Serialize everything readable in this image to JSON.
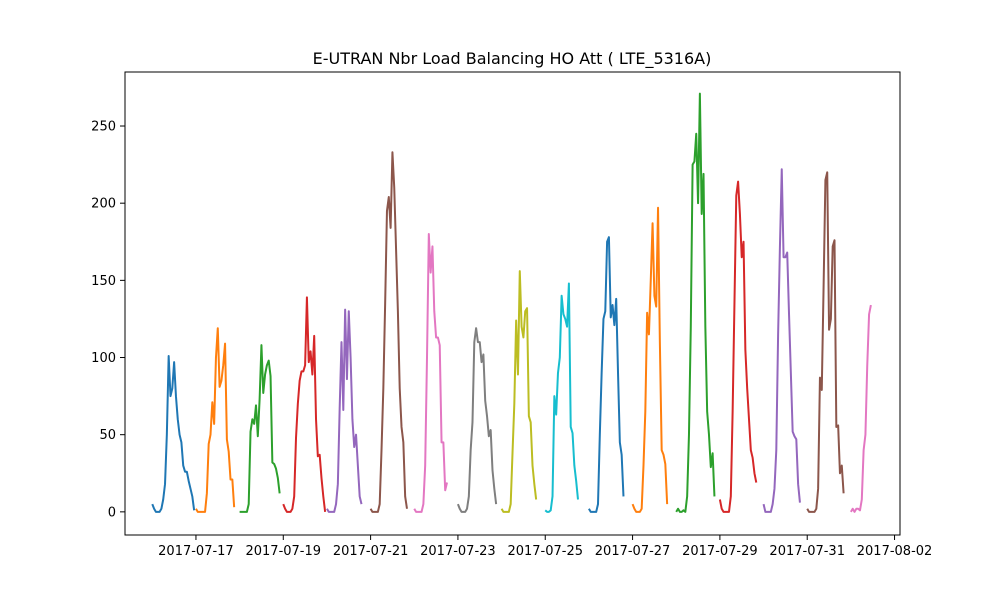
{
  "chart_data": {
    "type": "line",
    "title": "E-UTRAN Nbr Load Balancing HO Att ( LTE_5316A)",
    "xlabel": "",
    "ylabel": "",
    "ylim": [
      -15,
      285
    ],
    "xlim": [
      "2017-07-15T09:00",
      "2017-08-02T03:00"
    ],
    "grid": false,
    "legend": "none",
    "y_ticks": [
      0,
      50,
      100,
      150,
      200,
      250
    ],
    "x_ticks": [
      "2017-07-17",
      "2017-07-19",
      "2017-07-21",
      "2017-07-23",
      "2017-07-25",
      "2017-07-27",
      "2017-07-29",
      "2017-07-31",
      "2017-08-02"
    ],
    "colors": [
      "#1f77b4",
      "#ff7f0e",
      "#2ca02c",
      "#d62728",
      "#9467bd",
      "#8c564b",
      "#e377c2",
      "#7f7f7f",
      "#bcbd22",
      "#17becf"
    ],
    "series": [
      {
        "start": "2017-07-16T00:00",
        "y": [
          5,
          2,
          0,
          0,
          0,
          2,
          8,
          18,
          50,
          101,
          75,
          80,
          97,
          75,
          60,
          50,
          45,
          30,
          26,
          26,
          20,
          15,
          10,
          1
        ]
      },
      {
        "start": "2017-07-17T00:00",
        "y": [
          2,
          0,
          0,
          0,
          0,
          0,
          12,
          44,
          50,
          71,
          57,
          100,
          119,
          81,
          85,
          95,
          109,
          47,
          39,
          21,
          21,
          3
        ]
      },
      {
        "start": "2017-07-18T00:00",
        "y": [
          0,
          0,
          0,
          0,
          0,
          5,
          52,
          60,
          57,
          69,
          49,
          73,
          108,
          77,
          89,
          95,
          98,
          88,
          32,
          31,
          28,
          22,
          12
        ]
      },
      {
        "start": "2017-07-19T00:00",
        "y": [
          5,
          2,
          0,
          0,
          0,
          2,
          10,
          48,
          70,
          85,
          91,
          91,
          95,
          139,
          97,
          104,
          89,
          114,
          60,
          36,
          37,
          22,
          10,
          0
        ]
      },
      {
        "start": "2017-07-20T00:00",
        "y": [
          2,
          0,
          0,
          0,
          0,
          5,
          18,
          67,
          110,
          66,
          131,
          86,
          130,
          100,
          60,
          42,
          50,
          30,
          10,
          5
        ]
      },
      {
        "start": "2017-07-21T00:00",
        "y": [
          2,
          0,
          0,
          0,
          0,
          5,
          40,
          80,
          135,
          195,
          204,
          184,
          233,
          210,
          170,
          130,
          80,
          55,
          45,
          10,
          2
        ]
      },
      {
        "start": "2017-07-22T00:00",
        "y": [
          2,
          0,
          0,
          0,
          0,
          5,
          30,
          100,
          180,
          155,
          172,
          130,
          113,
          113,
          108,
          45,
          45,
          14,
          19
        ]
      },
      {
        "start": "2017-07-23T00:00",
        "y": [
          5,
          2,
          0,
          0,
          0,
          2,
          10,
          40,
          58,
          110,
          119,
          110,
          110,
          97,
          102,
          72,
          62,
          49,
          53,
          27,
          15,
          5
        ]
      },
      {
        "start": "2017-07-24T00:00",
        "y": [
          2,
          0,
          0,
          0,
          0,
          5,
          38,
          70,
          124,
          89,
          156,
          120,
          113,
          130,
          132,
          62,
          58,
          30,
          18,
          8
        ]
      },
      {
        "start": "2017-07-25T00:00",
        "y": [
          1,
          0,
          0,
          1,
          10,
          75,
          63,
          90,
          100,
          140,
          128,
          125,
          120,
          148,
          55,
          51,
          30,
          20,
          8
        ]
      },
      {
        "start": "2017-07-26T00:00",
        "y": [
          2,
          0,
          0,
          0,
          0,
          5,
          50,
          90,
          125,
          130,
          175,
          178,
          126,
          134,
          121,
          138,
          90,
          45,
          37,
          10
        ]
      },
      {
        "start": "2017-07-27T00:00",
        "y": [
          5,
          2,
          0,
          0,
          0,
          2,
          30,
          65,
          129,
          115,
          150,
          187,
          140,
          133,
          197,
          110,
          40,
          37,
          31,
          5
        ]
      },
      {
        "start": "2017-07-28T00:00",
        "y": [
          0,
          2,
          0,
          0,
          1,
          0,
          10,
          50,
          120,
          225,
          227,
          245,
          200,
          271,
          193,
          219,
          120,
          65,
          50,
          29,
          38,
          10
        ]
      },
      {
        "start": "2017-07-29T00:00",
        "y": [
          8,
          2,
          0,
          0,
          0,
          0,
          10,
          65,
          135,
          205,
          214,
          193,
          165,
          175,
          105,
          80,
          60,
          40,
          35,
          25,
          19
        ]
      },
      {
        "start": "2017-07-30T00:00",
        "y": [
          5,
          0,
          0,
          0,
          0,
          5,
          15,
          40,
          115,
          172,
          222,
          165,
          165,
          168,
          128,
          90,
          52,
          49,
          47,
          18,
          6
        ]
      },
      {
        "start": "2017-07-31T00:00",
        "y": [
          2,
          0,
          0,
          0,
          0,
          2,
          15,
          87,
          79,
          146,
          215,
          220,
          118,
          125,
          172,
          176,
          55,
          56,
          25,
          30,
          12
        ]
      },
      {
        "start": "2017-08-01T00:00",
        "y": [
          0,
          2,
          0,
          2,
          2,
          1,
          8,
          40,
          50,
          95,
          128,
          134
        ]
      }
    ]
  }
}
